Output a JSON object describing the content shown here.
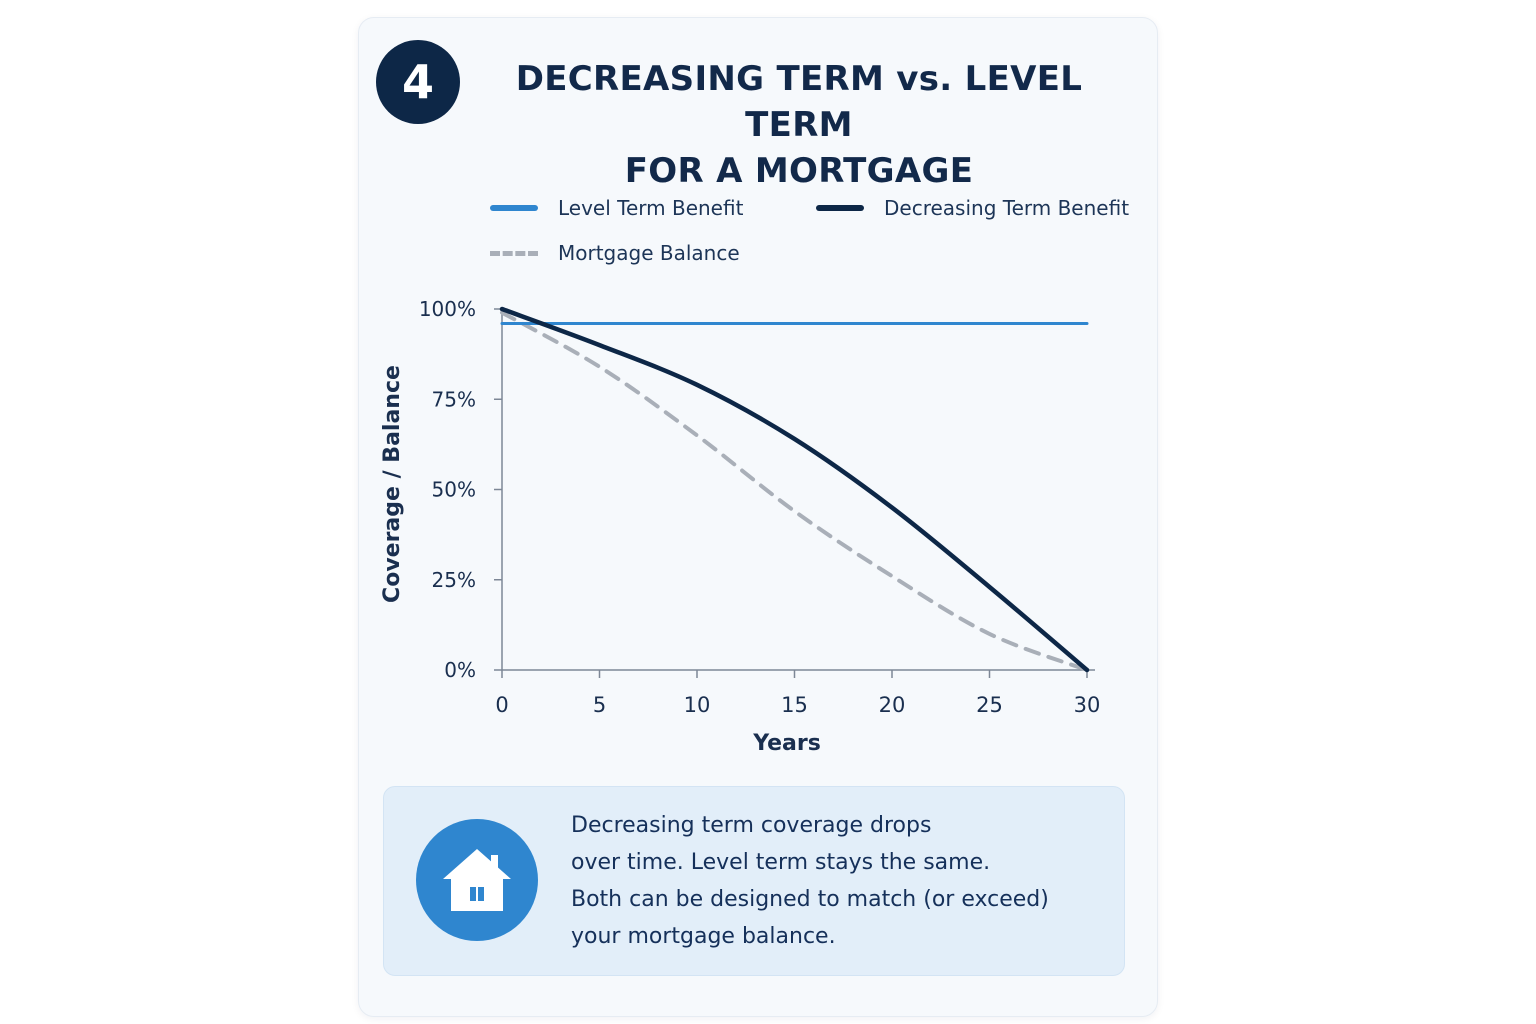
{
  "badge": {
    "number": "4"
  },
  "title": {
    "line1": "DECREASING TERM vs. LEVEL TERM",
    "line2": "FOR A MORTGAGE"
  },
  "colors": {
    "level": "#2f86cf",
    "decreasing": "#0d2747",
    "mortgage": "#a9afb8",
    "accent_badge": "#0d2747"
  },
  "legend": [
    {
      "label": "Level Term Benefit",
      "color": "#2f86cf",
      "style": "solid"
    },
    {
      "label": "Decreasing Term Benefit",
      "color": "#0d2747",
      "style": "solid"
    },
    {
      "label": "Mortgage Balance",
      "color": "#a9afb8",
      "style": "dashed"
    }
  ],
  "chart_data": {
    "type": "line",
    "title": "DECREASING TERM vs. LEVEL TERM FOR A MORTGAGE",
    "xlabel": "Years",
    "ylabel": "Coverage / Balance",
    "xlim": [
      0,
      30
    ],
    "ylim": [
      0,
      100
    ],
    "x_ticks": [
      0,
      5,
      10,
      15,
      20,
      25,
      30
    ],
    "y_ticks": [
      0,
      25,
      50,
      75,
      100
    ],
    "y_tick_labels": [
      "0%",
      "25%",
      "50%",
      "75%",
      "100%"
    ],
    "grid": false,
    "legend_position": "top",
    "series": [
      {
        "name": "Level Term Benefit",
        "style": "solid",
        "color": "#2f86cf",
        "x": [
          0,
          30
        ],
        "values": [
          96,
          96
        ]
      },
      {
        "name": "Decreasing Term Benefit",
        "style": "solid",
        "color": "#0d2747",
        "x": [
          0,
          5,
          10,
          15,
          20,
          25,
          30
        ],
        "values": [
          100,
          90,
          79,
          64,
          45,
          23,
          0
        ]
      },
      {
        "name": "Mortgage Balance",
        "style": "dashed",
        "color": "#a9afb8",
        "x": [
          0,
          5,
          10,
          15,
          20,
          25,
          30
        ],
        "values": [
          99,
          84,
          65,
          44,
          26,
          10,
          0
        ]
      }
    ]
  },
  "callout": {
    "icon": "house-icon",
    "lines": [
      "Decreasing term coverage drops",
      "over time. Level term stays the same.",
      "Both can be designed to match (or exceed)",
      "your mortgage balance."
    ]
  }
}
